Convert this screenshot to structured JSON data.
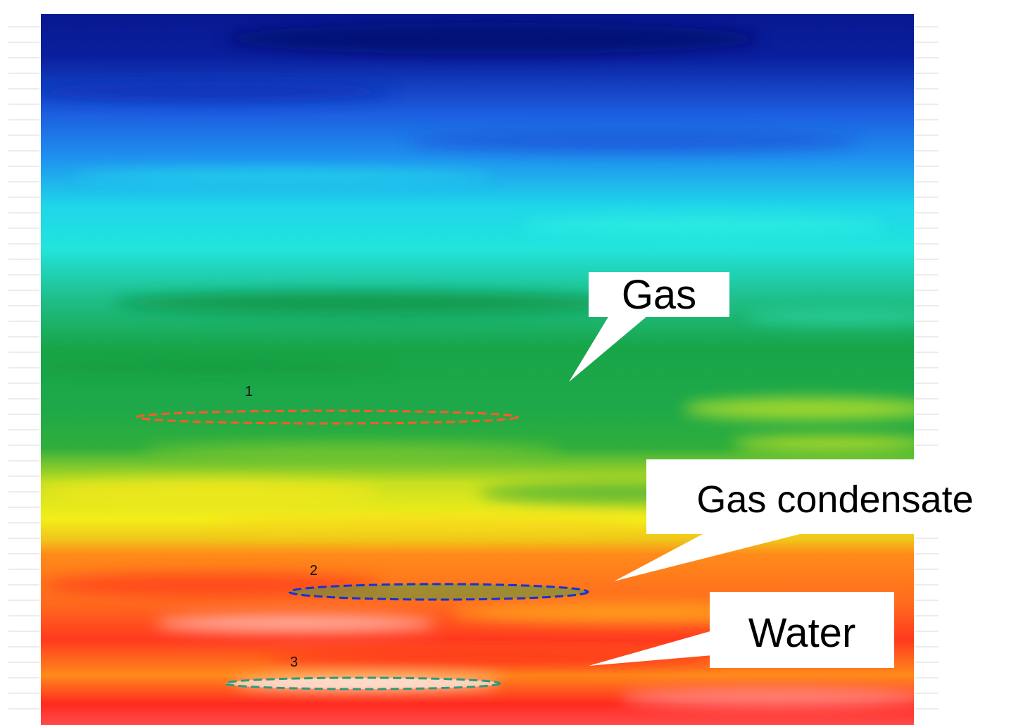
{
  "zones": [
    {
      "number": "1",
      "outline_color": "#ff5a2a"
    },
    {
      "number": "2",
      "outline_color": "#1a2fd6"
    },
    {
      "number": "3",
      "outline_color": "#2f9a7a"
    }
  ],
  "callouts": {
    "gas": "Gas",
    "gas_condensate": "Gas condensate",
    "water": "Water"
  },
  "colors": {
    "deep_blue": "#0a1f9e",
    "blue": "#1c5ee0",
    "cyan": "#1fe6ea",
    "green": "#1fa84a",
    "yellow": "#f3ee1a",
    "orange": "#ff8a1a",
    "red": "#ff2a1f",
    "pale": "#ffd8d8"
  }
}
